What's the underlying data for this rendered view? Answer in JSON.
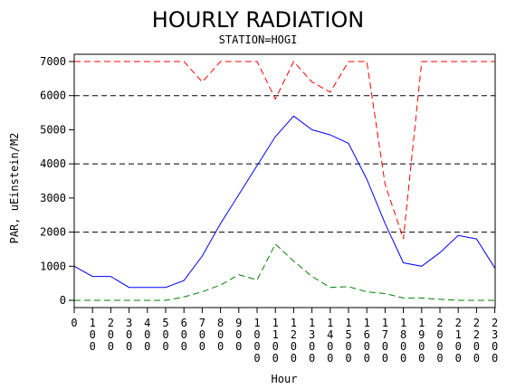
{
  "chart_data": {
    "type": "line",
    "title": "HOURLY RADIATION",
    "subtitle": "STATION=HOGI",
    "xlabel": "Hour",
    "ylabel": "PAR, uEinstein/M2",
    "x": [
      "0",
      "100",
      "200",
      "300",
      "400",
      "500",
      "600",
      "700",
      "800",
      "900",
      "1000",
      "1100",
      "1200",
      "1300",
      "1400",
      "1500",
      "1600",
      "1700",
      "1800",
      "1900",
      "2000",
      "2100",
      "2200",
      "2300"
    ],
    "ylim": [
      0,
      7000
    ],
    "yticks": [
      0,
      1000,
      2000,
      3000,
      4000,
      5000,
      6000,
      7000
    ],
    "ytick_labels": [
      "0",
      "1000",
      "2000",
      "3000",
      "4000",
      "5000",
      "6000",
      "7000"
    ],
    "reference_lines": [
      2000,
      4000,
      6000
    ],
    "series": [
      {
        "color": "#ff0000",
        "style": "dashed",
        "values": [
          7000,
          7000,
          7000,
          7000,
          7000,
          7000,
          7000,
          6400,
          7000,
          7000,
          7000,
          5900,
          7000,
          6400,
          6100,
          7000,
          7000,
          3400,
          1800,
          7000,
          7000,
          7000,
          7000,
          7000
        ]
      },
      {
        "color": "#0000ff",
        "style": "solid",
        "values": [
          1000,
          700,
          700,
          380,
          380,
          380,
          580,
          1300,
          2250,
          3100,
          3950,
          4800,
          5400,
          5000,
          4850,
          4600,
          3550,
          2250,
          1100,
          1000,
          1400,
          1900,
          1800,
          950
        ]
      },
      {
        "color": "#008000",
        "style": "dashed",
        "values": [
          0,
          0,
          0,
          0,
          0,
          0,
          100,
          250,
          450,
          750,
          600,
          1650,
          1150,
          700,
          380,
          400,
          250,
          200,
          70,
          70,
          30,
          0,
          0,
          0
        ]
      }
    ],
    "grid": false,
    "legend": "none"
  }
}
